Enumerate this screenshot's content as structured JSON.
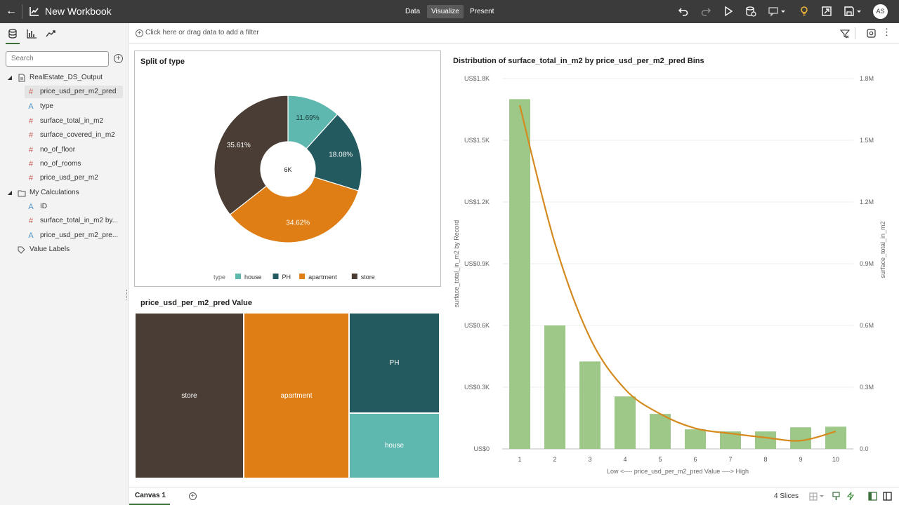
{
  "header": {
    "title": "New Workbook",
    "tabs": [
      {
        "label": "Data"
      },
      {
        "label": "Visualize"
      },
      {
        "label": "Present"
      }
    ],
    "avatar_initials": "AS"
  },
  "left_panel": {
    "search_placeholder": "Search",
    "tree": [
      {
        "label": "RealEstate_DS_Output",
        "icon": "dataset-icon"
      },
      {
        "label": "price_usd_per_m2_pred",
        "icon": "number-icon"
      },
      {
        "label": "type",
        "icon": "attribute-icon"
      },
      {
        "label": "surface_total_in_m2",
        "icon": "number-icon"
      },
      {
        "label": "surface_covered_in_m2",
        "icon": "number-icon"
      },
      {
        "label": "no_of_floor",
        "icon": "number-icon"
      },
      {
        "label": "no_of_rooms",
        "icon": "number-icon"
      },
      {
        "label": "price_usd_per_m2",
        "icon": "number-icon"
      },
      {
        "label": "My Calculations",
        "icon": "folder-icon"
      },
      {
        "label": "ID",
        "icon": "attribute-icon"
      },
      {
        "label": "surface_total_in_m2 by...",
        "icon": "number-icon"
      },
      {
        "label": "price_usd_per_m2_pre...",
        "icon": "attribute-icon"
      },
      {
        "label": "Value Labels",
        "icon": "tag-icon"
      }
    ]
  },
  "filter_bar": {
    "placeholder": "Click here or drag data to add a filter"
  },
  "colors": {
    "house": "#5eb8b0",
    "PH": "#235a60",
    "apartment": "#de7e14",
    "store": "#4a3d35",
    "bar": "#9dc887",
    "line": "#d58a1f"
  },
  "chart_data": [
    {
      "type": "pie",
      "title": "Split of type",
      "center_label": "6K",
      "legend_title": "type",
      "slices": [
        {
          "name": "house",
          "value": 11.69,
          "label": "11.69%"
        },
        {
          "name": "PH",
          "value": 18.08,
          "label": "18.08%"
        },
        {
          "name": "apartment",
          "value": 34.62,
          "label": "34.62%"
        },
        {
          "name": "store",
          "value": 35.61,
          "label": "35.61%"
        }
      ]
    },
    {
      "type": "treemap",
      "title": "price_usd_per_m2_pred Value",
      "items": [
        {
          "name": "store",
          "value": 35.6
        },
        {
          "name": "apartment",
          "value": 34.6
        },
        {
          "name": "PH",
          "value": 18.1
        },
        {
          "name": "house",
          "value": 11.7
        }
      ]
    },
    {
      "type": "bar",
      "title": "Distribution of surface_total_in_m2 by price_usd_per_m2_pred Bins",
      "categories": [
        "1",
        "2",
        "3",
        "4",
        "5",
        "6",
        "7",
        "8",
        "9",
        "10"
      ],
      "xlabel": "Low <---- price_usd_per_m2_pred Value ----> High",
      "ylabel": "surface_total_in_m2 by Record",
      "y2label": "surface_total_in_m2",
      "ylim": [
        0,
        1800
      ],
      "y2lim": [
        0,
        1800000
      ],
      "yticks": [
        "US$0",
        "US$0.3K",
        "US$0.6K",
        "US$0.9K",
        "US$1.2K",
        "US$1.5K",
        "US$1.8K"
      ],
      "y2ticks": [
        "0.0",
        "0.3M",
        "0.6M",
        "0.9M",
        "1.2M",
        "1.5M",
        "1.8M"
      ],
      "series": [
        {
          "type": "bar",
          "axis": "left",
          "values": [
            1700,
            600,
            425,
            255,
            170,
            95,
            85,
            85,
            105,
            108
          ]
        },
        {
          "type": "line",
          "axis": "right",
          "values": [
            1670000,
            1000000,
            540000,
            290000,
            170000,
            100000,
            75000,
            55000,
            40000,
            85000
          ]
        }
      ]
    }
  ],
  "status_bar": {
    "canvas_tab": "Canvas 1",
    "slices": "4 Slices"
  }
}
